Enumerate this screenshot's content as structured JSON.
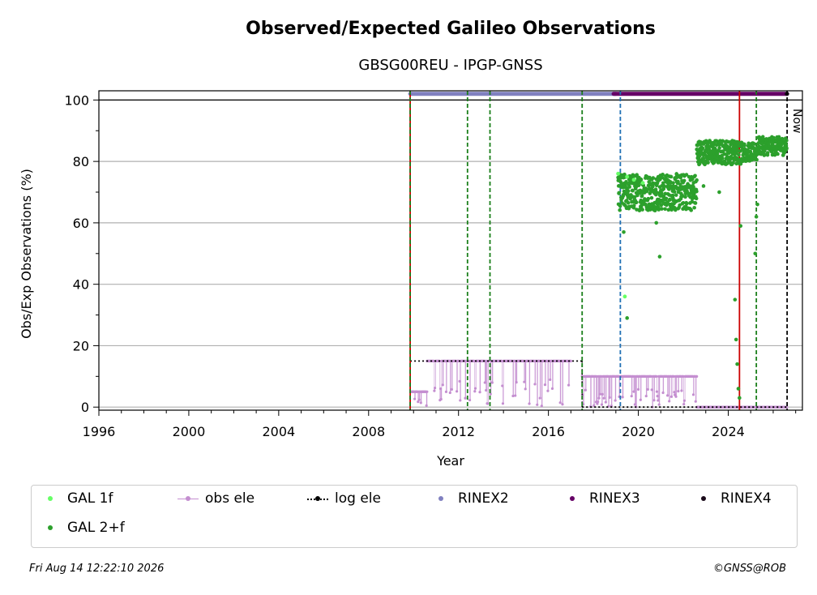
{
  "chart_data": {
    "type": "scatter",
    "title": "Observed/Expected Galileo Observations",
    "subtitle": "GBSG00REU - IPGP-GNSS",
    "xlabel": "Year",
    "ylabel": "Obs/Exp Observations (%)",
    "xlim": [
      1996,
      2027.3
    ],
    "ylim": [
      -1,
      103
    ],
    "x_ticks": [
      "1996",
      "2000",
      "2004",
      "2008",
      "2012",
      "2016",
      "2020",
      "2024"
    ],
    "y_ticks": [
      "0",
      "20",
      "40",
      "60",
      "80",
      "100"
    ],
    "grid": "horizontal",
    "now_label": "Now",
    "now_x": 2026.62,
    "vertical_lines": [
      {
        "x": 2009.85,
        "color": "#cc0000",
        "style": "solid"
      },
      {
        "x": 2009.85,
        "color": "#1a7f1a",
        "style": "dashed"
      },
      {
        "x": 2012.4,
        "color": "#1a7f1a",
        "style": "dashed"
      },
      {
        "x": 2013.4,
        "color": "#1a7f1a",
        "style": "dashed"
      },
      {
        "x": 2017.5,
        "color": "#1a7f1a",
        "style": "dashed"
      },
      {
        "x": 2019.2,
        "color": "#1f6fb4",
        "style": "dashed"
      },
      {
        "x": 2024.5,
        "color": "#cc0000",
        "style": "solid"
      },
      {
        "x": 2025.25,
        "color": "#1a7f1a",
        "style": "dashed"
      },
      {
        "x": 2026.62,
        "color": "#000000",
        "style": "dashed"
      }
    ],
    "series": [
      {
        "name": "GAL 1f",
        "color": "#66ff66",
        "points": [
          [
            2019.1,
            76
          ],
          [
            2019.5,
            75
          ],
          [
            2019.8,
            74
          ],
          [
            2019.4,
            36
          ],
          [
            2020.2,
            73
          ]
        ]
      },
      {
        "name": "GAL 2+f",
        "color": "#2ca02c",
        "segments": [
          {
            "x": [
              2019.1,
              2022.6
            ],
            "level": 70,
            "spread": 6
          },
          {
            "x": [
              2022.6,
              2024.6
            ],
            "level": 83,
            "spread": 4
          },
          {
            "x": [
              2024.6,
              2025.3
            ],
            "level": 83,
            "spread": 3
          },
          {
            "x": [
              2025.3,
              2026.6
            ],
            "level": 85,
            "spread": 3
          }
        ],
        "outliers": [
          [
            2019.35,
            57
          ],
          [
            2019.5,
            29
          ],
          [
            2020.8,
            60
          ],
          [
            2020.95,
            49
          ],
          [
            2024.3,
            35
          ],
          [
            2024.35,
            22
          ],
          [
            2024.4,
            14
          ],
          [
            2024.45,
            6
          ],
          [
            2024.5,
            3
          ],
          [
            2024.55,
            59
          ],
          [
            2025.2,
            50
          ],
          [
            2025.25,
            62
          ],
          [
            2025.3,
            66
          ],
          [
            2023.6,
            70
          ],
          [
            2022.9,
            72
          ]
        ]
      },
      {
        "name": "obs ele",
        "color": "#c48ed0",
        "segments": [
          {
            "x": [
              2009.9,
              2010.6
            ],
            "level": 5
          },
          {
            "x": [
              2010.6,
              2017.0
            ],
            "level": 15
          },
          {
            "x": [
              2017.5,
              2022.6
            ],
            "level": 10
          },
          {
            "x": [
              2022.6,
              2026.6
            ],
            "level": 0
          }
        ]
      },
      {
        "name": "log ele",
        "color": "#000000",
        "segments": [
          {
            "x": [
              2009.85,
              2017.5
            ],
            "level": 15
          },
          {
            "x": [
              2017.5,
              2026.62
            ],
            "level": 0
          }
        ]
      },
      {
        "name": "RINEX2",
        "color": "#8080c0",
        "bar": {
          "x": [
            2009.85,
            2019.0
          ],
          "level": 102
        }
      },
      {
        "name": "RINEX3",
        "color": "#660066",
        "bar": {
          "x": [
            2018.9,
            2026.62
          ],
          "level": 102
        }
      },
      {
        "name": "RINEX4",
        "color": "#1a0a1a",
        "bar": {
          "x": [
            2026.6,
            2026.62
          ],
          "level": 102
        }
      }
    ]
  },
  "legend": {
    "items": [
      {
        "label": "GAL 1f",
        "color": "#66ff66",
        "marker": "dot"
      },
      {
        "label": "obs ele",
        "color": "#c48ed0",
        "marker": "line-dot"
      },
      {
        "label": "log ele",
        "color": "#000000",
        "marker": "dotted-line"
      },
      {
        "label": "RINEX2",
        "color": "#8080c0",
        "marker": "dot"
      },
      {
        "label": "RINEX3",
        "color": "#660066",
        "marker": "dot"
      },
      {
        "label": "RINEX4",
        "color": "#1a0a1a",
        "marker": "dot"
      },
      {
        "label": "GAL 2+f",
        "color": "#2ca02c",
        "marker": "dot"
      }
    ]
  },
  "footer": {
    "timestamp": "Fri Aug 14 12:22:10 2026",
    "credit": "©GNSS@ROB"
  }
}
